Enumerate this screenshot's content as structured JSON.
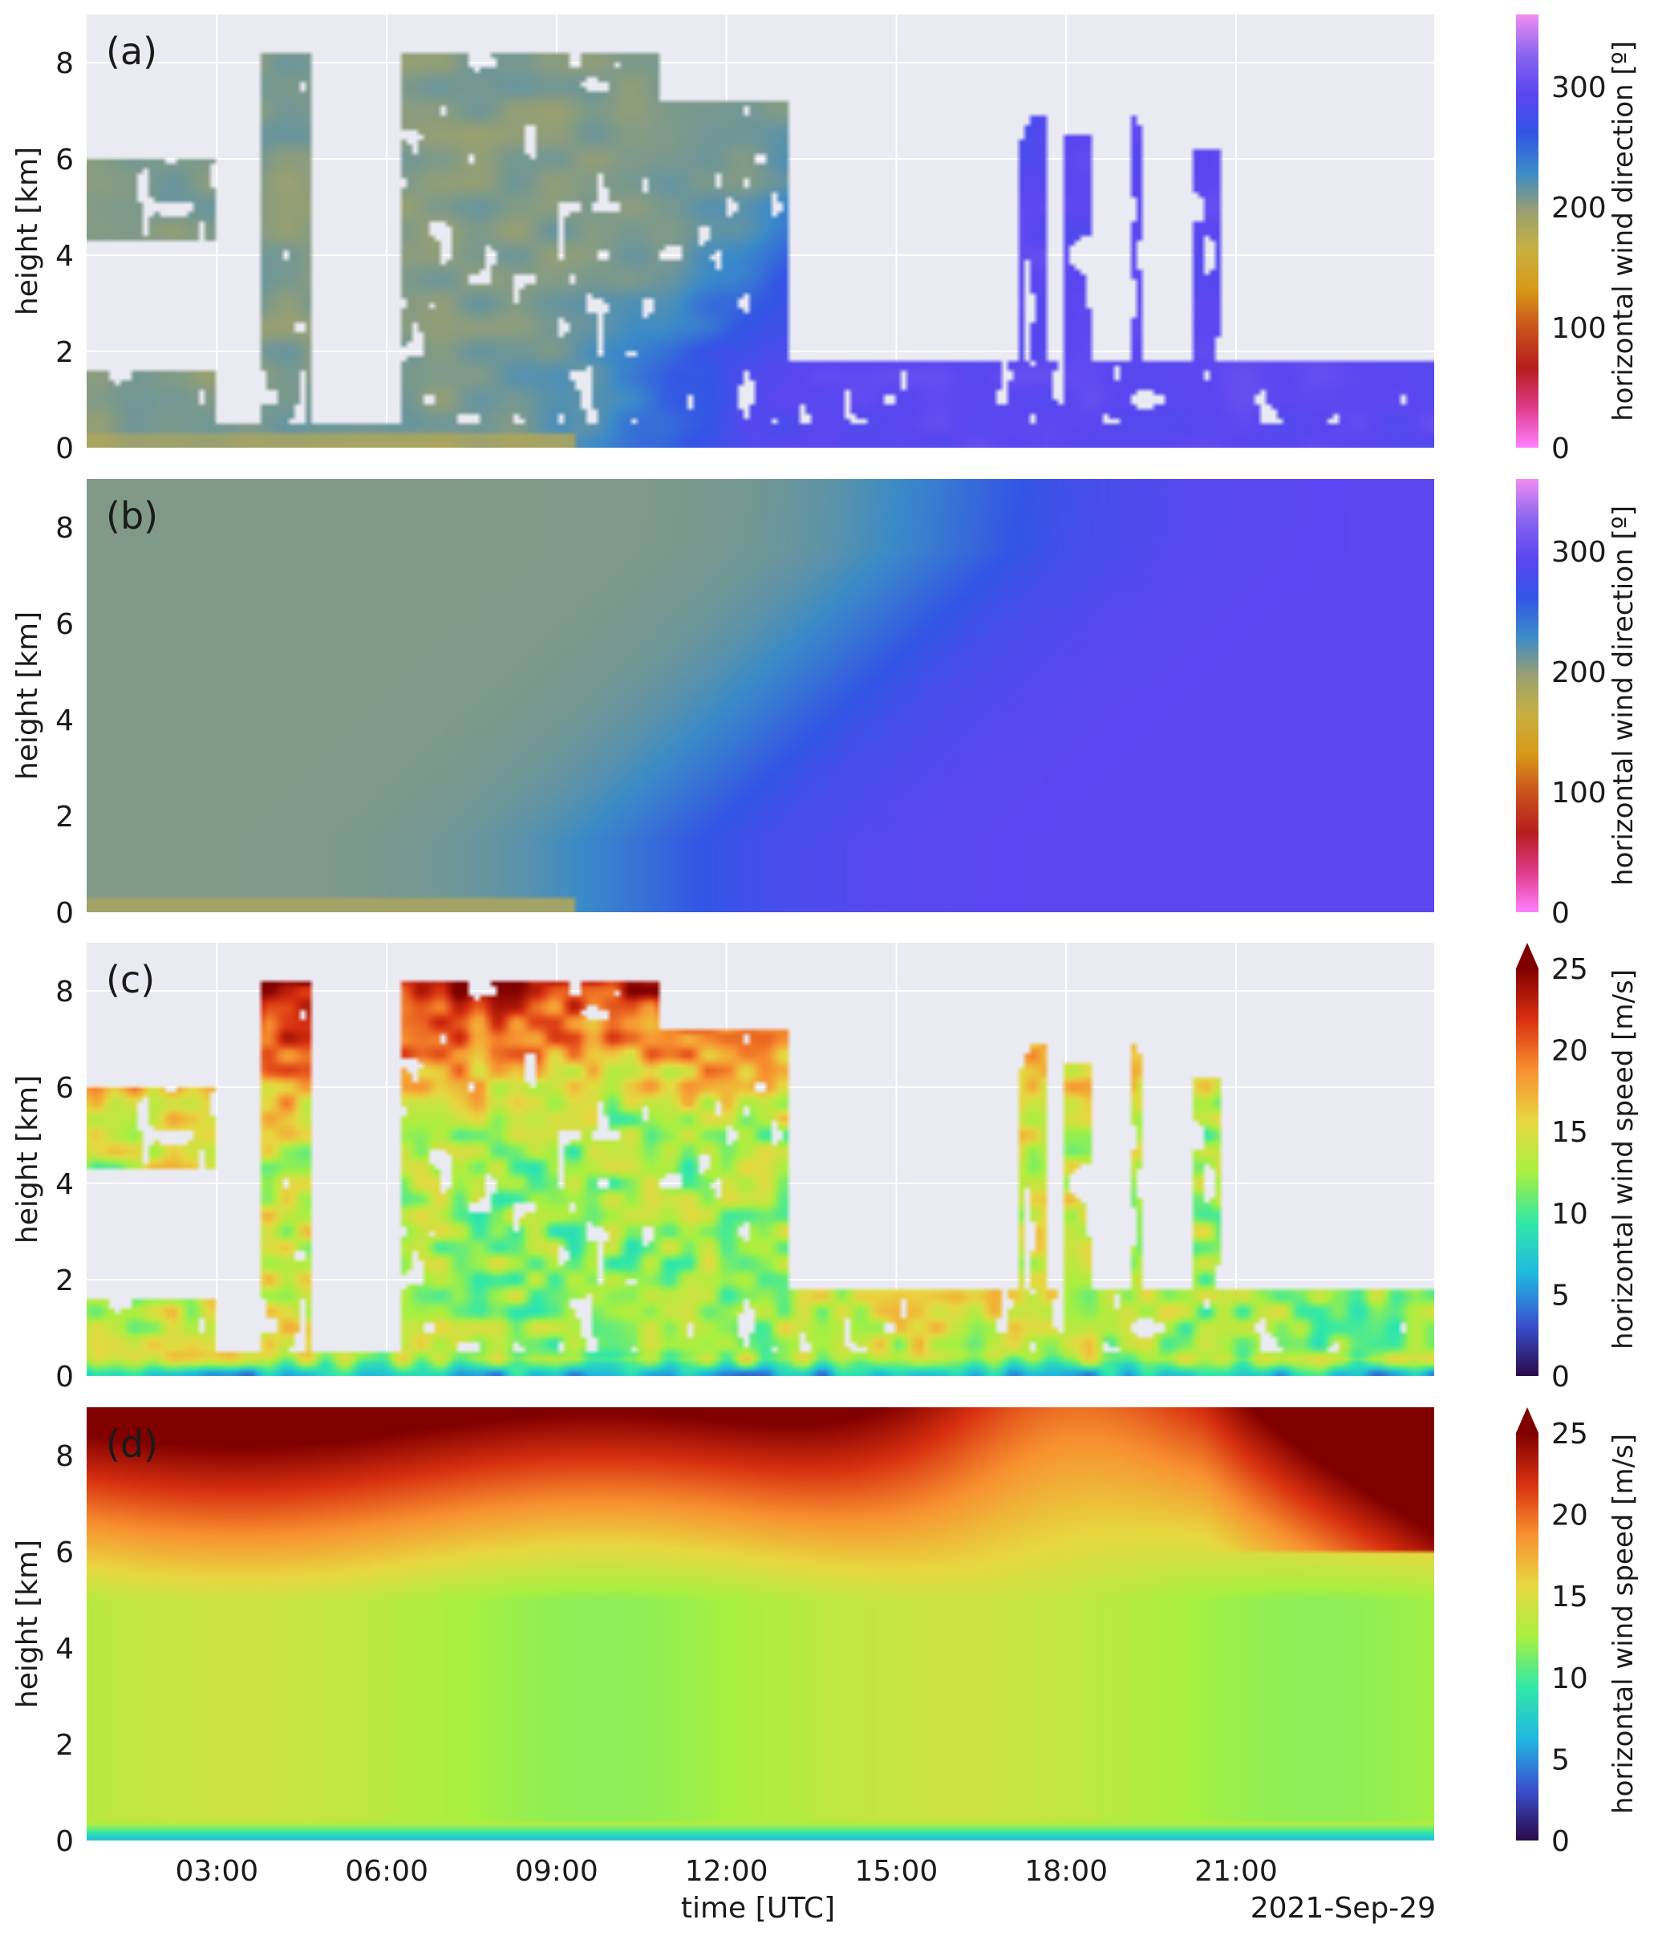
{
  "chart_data": [
    {
      "type": "heatmap",
      "panel_label": "(a)",
      "ylabel": "height [km]",
      "yticks": [
        0,
        2,
        4,
        6,
        8
      ],
      "ylim": [
        0,
        9
      ],
      "xlim": [
        "00:00",
        "24:00"
      ],
      "variable": "direction",
      "colorbar": {
        "label": "horizontal wind direction [º]",
        "ticks": [
          0,
          100,
          200,
          300
        ],
        "range": [
          0,
          360
        ],
        "extend_max": false
      },
      "grid": true
    },
    {
      "type": "heatmap",
      "panel_label": "(b)",
      "ylabel": "height [km]",
      "yticks": [
        0,
        2,
        4,
        6,
        8
      ],
      "ylim": [
        0,
        9
      ],
      "xlim": [
        "00:00",
        "24:00"
      ],
      "variable": "direction",
      "colorbar": {
        "label": "horizontal wind direction [º]",
        "ticks": [
          0,
          100,
          200,
          300
        ],
        "range": [
          0,
          360
        ],
        "extend_max": false
      },
      "grid": true
    },
    {
      "type": "heatmap",
      "panel_label": "(c)",
      "ylabel": "height [km]",
      "yticks": [
        0,
        2,
        4,
        6,
        8
      ],
      "ylim": [
        0,
        9
      ],
      "xlim": [
        "00:00",
        "24:00"
      ],
      "variable": "speed",
      "colorbar": {
        "label": "horizontal wind speed [m/s]",
        "ticks": [
          0,
          5,
          10,
          15,
          20,
          25
        ],
        "range": [
          0,
          25
        ],
        "extend_max": true
      },
      "grid": true
    },
    {
      "type": "heatmap",
      "panel_label": "(d)",
      "ylabel": "height [km]",
      "yticks": [
        0,
        2,
        4,
        6,
        8
      ],
      "ylim": [
        0,
        9
      ],
      "xlim": [
        "00:00",
        "24:00"
      ],
      "variable": "speed",
      "colorbar": {
        "label": "horizontal wind speed [m/s]",
        "ticks": [
          0,
          5,
          10,
          15,
          20,
          25
        ],
        "range": [
          0,
          25
        ],
        "extend_max": true
      },
      "grid": true
    }
  ],
  "shared_x": {
    "xlabel": "time [UTC]",
    "date": "2021-Sep-29",
    "ticks": [
      "03:00",
      "06:00",
      "09:00",
      "12:00",
      "15:00",
      "18:00",
      "21:00"
    ]
  },
  "colors": {
    "direction_colormap": [
      "#ff80ff",
      "#e03c8c",
      "#b81c1c",
      "#c8501c",
      "#d89818",
      "#c8b040",
      "#9aa070",
      "#3b8bc8",
      "#3355e6",
      "#5b46f0",
      "#8a66f0",
      "#f08cf0"
    ],
    "speed_colormap": [
      "#2a0a48",
      "#3a50d0",
      "#20b8e0",
      "#30e8a8",
      "#a8f040",
      "#e8d840",
      "#f89030",
      "#d83010",
      "#800000"
    ],
    "axes_background": "#eaeaf2",
    "grid": "#ffffff"
  }
}
